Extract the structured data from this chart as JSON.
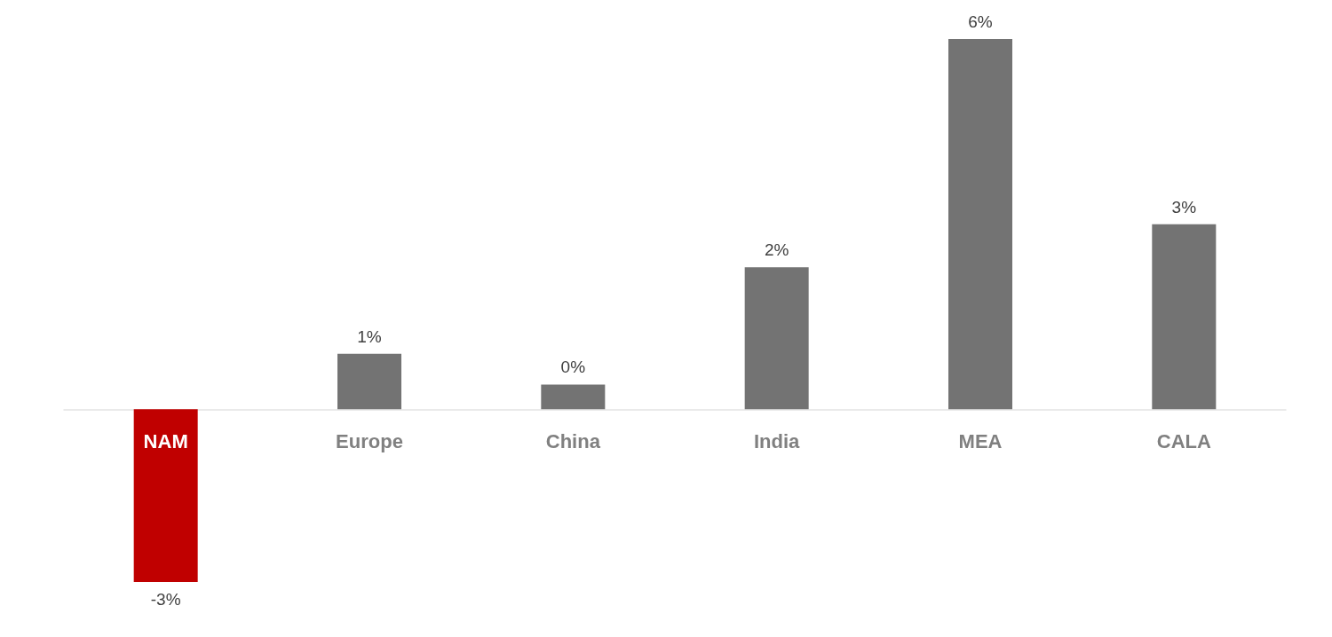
{
  "chart_data": {
    "type": "bar",
    "categories": [
      "NAM",
      "Europe",
      "China",
      "India",
      "MEA",
      "CALA"
    ],
    "values": [
      -2.8,
      0.9,
      0.4,
      2.3,
      6.0,
      3.0
    ],
    "colors": [
      "#c00000",
      "#737373",
      "#737373",
      "#737373",
      "#737373",
      "#737373"
    ],
    "value_labels": [
      "-3%",
      "1%",
      "0%",
      "2%",
      "6%",
      "3%"
    ]
  }
}
